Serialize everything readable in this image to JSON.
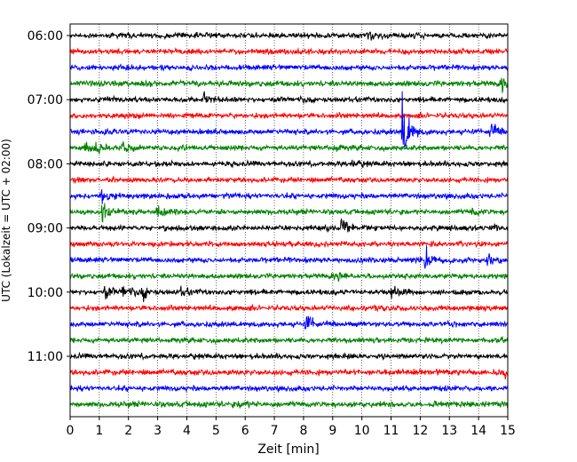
{
  "chart_data": {
    "type": "line",
    "title": "",
    "xlabel": "Zeit  [min]",
    "ylabel": "UTC (Lokalzeit = UTC + 02:00)",
    "xlim": [
      0,
      15
    ],
    "xticks": [
      0,
      1,
      2,
      3,
      4,
      5,
      6,
      7,
      8,
      9,
      10,
      11,
      12,
      13,
      14,
      15
    ],
    "xtick_labels": [
      "0",
      "1",
      "2",
      "3",
      "4",
      "5",
      "6",
      "7",
      "8",
      "9",
      "10",
      "11",
      "12",
      "13",
      "14",
      "15"
    ],
    "ytick_labels": [
      "06:00",
      "07:00",
      "08:00",
      "09:00",
      "10:00",
      "11:00"
    ],
    "ytick_rows": [
      0,
      4,
      8,
      12,
      16,
      20
    ],
    "grid": "vertical-dotted",
    "color_cycle": [
      "#000000",
      "#ff0000",
      "#0000ff",
      "#008000"
    ],
    "series": [
      {
        "start": "06:00",
        "color": "#000000",
        "amplitude": 0.5,
        "events": [
          {
            "x": 10.2,
            "amp": 0.8
          }
        ]
      },
      {
        "start": "06:15",
        "color": "#ff0000",
        "amplitude": 0.5,
        "events": []
      },
      {
        "start": "06:30",
        "color": "#0000ff",
        "amplitude": 0.5,
        "events": []
      },
      {
        "start": "06:45",
        "color": "#008000",
        "amplitude": 0.55,
        "events": [
          {
            "x": 14.8,
            "amp": 1.0
          }
        ]
      },
      {
        "start": "07:00",
        "color": "#000000",
        "amplitude": 0.5,
        "events": [
          {
            "x": 1.2,
            "amp": 0.8
          },
          {
            "x": 4.6,
            "amp": 1.3
          }
        ]
      },
      {
        "start": "07:15",
        "color": "#ff0000",
        "amplitude": 0.5,
        "events": []
      },
      {
        "start": "07:30",
        "color": "#0000ff",
        "amplitude": 0.5,
        "events": [
          {
            "x": 11.4,
            "amp": 7.5
          },
          {
            "x": 14.4,
            "amp": 2.0
          }
        ]
      },
      {
        "start": "07:45",
        "color": "#008000",
        "amplitude": 0.5,
        "events": [
          {
            "x": 0.5,
            "amp": 0.9
          },
          {
            "x": 0.9,
            "amp": 1.5
          },
          {
            "x": 1.8,
            "amp": 1.7
          },
          {
            "x": 9.0,
            "amp": 0.7
          }
        ]
      },
      {
        "start": "08:00",
        "color": "#000000",
        "amplitude": 0.5,
        "events": [
          {
            "x": 9.6,
            "amp": 0.8
          }
        ]
      },
      {
        "start": "08:15",
        "color": "#ff0000",
        "amplitude": 0.5,
        "events": []
      },
      {
        "start": "08:30",
        "color": "#0000ff",
        "amplitude": 0.5,
        "events": [
          {
            "x": 1.1,
            "amp": 2.0
          }
        ]
      },
      {
        "start": "08:45",
        "color": "#008000",
        "amplitude": 0.5,
        "events": [
          {
            "x": 1.1,
            "amp": 2.5
          },
          {
            "x": 3.0,
            "amp": 1.3
          },
          {
            "x": 13.8,
            "amp": 0.8
          }
        ]
      },
      {
        "start": "09:00",
        "color": "#000000",
        "amplitude": 0.5,
        "events": [
          {
            "x": 9.3,
            "amp": 2.3
          },
          {
            "x": 14.4,
            "amp": 0.8
          }
        ]
      },
      {
        "start": "09:15",
        "color": "#ff0000",
        "amplitude": 0.5,
        "events": []
      },
      {
        "start": "09:30",
        "color": "#0000ff",
        "amplitude": 0.5,
        "events": [
          {
            "x": 12.2,
            "amp": 2.7
          },
          {
            "x": 14.3,
            "amp": 1.2
          }
        ]
      },
      {
        "start": "09:45",
        "color": "#008000",
        "amplitude": 0.5,
        "events": [
          {
            "x": 9.2,
            "amp": 0.8
          }
        ]
      },
      {
        "start": "10:00",
        "color": "#000000",
        "amplitude": 0.5,
        "events": [
          {
            "x": 1.2,
            "amp": 1.4
          },
          {
            "x": 1.8,
            "amp": 1.3
          },
          {
            "x": 2.5,
            "amp": 1.1
          },
          {
            "x": 3.8,
            "amp": 0.9
          },
          {
            "x": 11.0,
            "amp": 1.0
          }
        ]
      },
      {
        "start": "10:15",
        "color": "#ff0000",
        "amplitude": 0.5,
        "events": []
      },
      {
        "start": "10:30",
        "color": "#0000ff",
        "amplitude": 0.5,
        "events": [
          {
            "x": 8.1,
            "amp": 1.8
          }
        ]
      },
      {
        "start": "10:45",
        "color": "#008000",
        "amplitude": 0.5,
        "events": []
      },
      {
        "start": "11:00",
        "color": "#000000",
        "amplitude": 0.5,
        "events": []
      },
      {
        "start": "11:15",
        "color": "#ff0000",
        "amplitude": 0.55,
        "events": [
          {
            "x": 14.9,
            "amp": 0.8
          }
        ]
      },
      {
        "start": "11:30",
        "color": "#0000ff",
        "amplitude": 0.5,
        "events": []
      },
      {
        "start": "11:45",
        "color": "#008000",
        "amplitude": 0.55,
        "events": [
          {
            "x": 5.8,
            "amp": 0.9
          }
        ]
      }
    ]
  }
}
